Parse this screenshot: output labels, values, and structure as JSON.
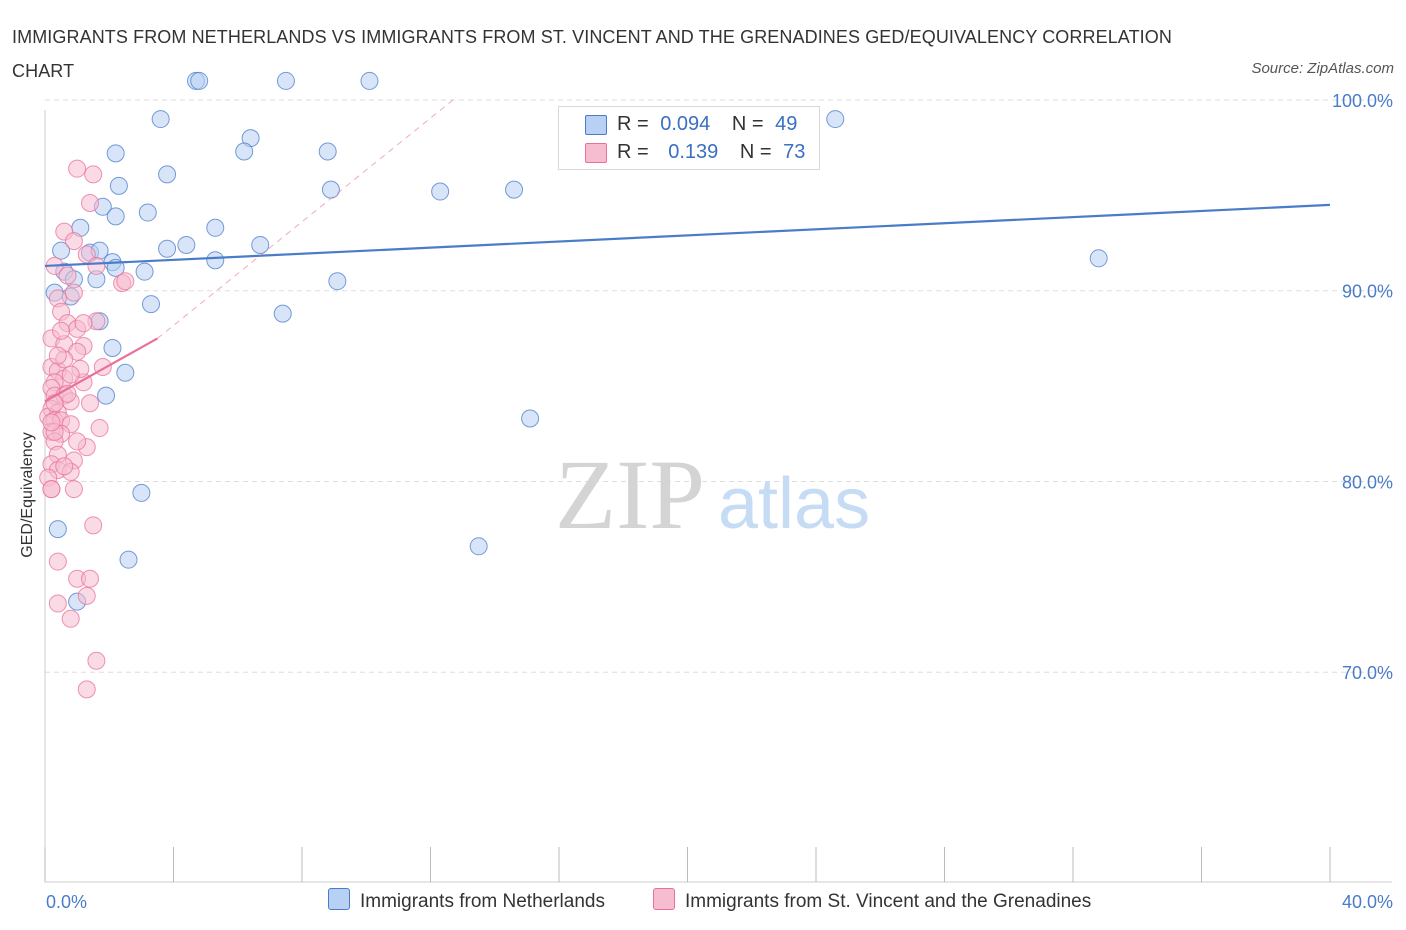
{
  "title": "IMMIGRANTS FROM NETHERLANDS VS IMMIGRANTS FROM ST. VINCENT AND THE GRENADINES GED/EQUIVALENCY CORRELATION CHART",
  "source": "Source: ZipAtlas.com",
  "watermark": {
    "zip": "ZIP",
    "atlas": "atlas"
  },
  "colors": {
    "blue": "#4a7cc9",
    "blue_fill": "#b8d0f3",
    "pink": "#e8709b",
    "pink_fill": "#f6bcd0",
    "grid": "#dddddd"
  },
  "legend_top": [
    {
      "r_label": "R =",
      "r_value": "0.094",
      "n_label": "N =",
      "n_value": "49"
    },
    {
      "r_label": "R =",
      "r_value": "0.139",
      "n_label": "N =",
      "n_value": "73"
    }
  ],
  "legend_bottom": [
    "Immigrants from Netherlands",
    "Immigrants from St. Vincent and the Grenadines"
  ],
  "chart_data": {
    "type": "scatter",
    "title": "IMMIGRANTS FROM NETHERLANDS VS IMMIGRANTS FROM ST. VINCENT AND THE GRENADINES GED/EQUIVALENCY CORRELATION CHART",
    "xlabel": "",
    "ylabel": "GED/Equivalency",
    "xlim": [
      0,
      40
    ],
    "ylim": [
      59,
      100
    ],
    "x_tick_labels": [
      "0.0%",
      "40.0%"
    ],
    "y_tick_labels": [
      "100.0%",
      "90.0%",
      "80.0%",
      "70.0%"
    ],
    "y_ticks": [
      100,
      90,
      80,
      70
    ],
    "grid": true,
    "series": [
      {
        "name": "Immigrants from Netherlands",
        "color": "#4a7cc9",
        "points": [
          [
            4.7,
            101
          ],
          [
            4.8,
            101
          ],
          [
            7.5,
            101
          ],
          [
            10.1,
            101
          ],
          [
            3.6,
            99
          ],
          [
            6.4,
            98
          ],
          [
            24.6,
            99
          ],
          [
            2.2,
            97.2
          ],
          [
            6.2,
            97.3
          ],
          [
            8.8,
            97.3
          ],
          [
            3.8,
            96.1
          ],
          [
            2.3,
            95.5
          ],
          [
            12.3,
            95.2
          ],
          [
            14.6,
            95.3
          ],
          [
            8.9,
            95.3
          ],
          [
            1.8,
            94.4
          ],
          [
            3.2,
            94.1
          ],
          [
            2.2,
            93.9
          ],
          [
            1.1,
            93.3
          ],
          [
            5.3,
            93.3
          ],
          [
            4.4,
            92.4
          ],
          [
            6.7,
            92.4
          ],
          [
            3.8,
            92.2
          ],
          [
            0.5,
            92.1
          ],
          [
            1.4,
            92.0
          ],
          [
            1.7,
            92.1
          ],
          [
            2.1,
            91.5
          ],
          [
            5.3,
            91.6
          ],
          [
            2.2,
            91.2
          ],
          [
            3.1,
            91.0
          ],
          [
            0.6,
            91.0
          ],
          [
            32.8,
            91.7
          ],
          [
            1.6,
            90.6
          ],
          [
            0.9,
            90.6
          ],
          [
            9.1,
            90.5
          ],
          [
            0.8,
            89.7
          ],
          [
            0.3,
            89.9
          ],
          [
            1.7,
            88.4
          ],
          [
            3.3,
            89.3
          ],
          [
            7.4,
            88.8
          ],
          [
            2.1,
            87.0
          ],
          [
            2.5,
            85.7
          ],
          [
            1.9,
            84.5
          ],
          [
            15.1,
            83.3
          ],
          [
            3.0,
            79.4
          ],
          [
            13.5,
            76.6
          ],
          [
            2.6,
            75.9
          ],
          [
            1.0,
            73.7
          ],
          [
            0.4,
            77.5
          ]
        ]
      },
      {
        "name": "Immigrants from St. Vincent and the Grenadines",
        "color": "#e8709b",
        "points": [
          [
            1.0,
            96.4
          ],
          [
            1.5,
            96.1
          ],
          [
            1.4,
            94.6
          ],
          [
            0.6,
            93.1
          ],
          [
            0.9,
            92.6
          ],
          [
            1.3,
            91.9
          ],
          [
            0.3,
            91.3
          ],
          [
            1.6,
            91.3
          ],
          [
            2.4,
            90.4
          ],
          [
            2.5,
            90.5
          ],
          [
            0.4,
            89.6
          ],
          [
            0.5,
            88.9
          ],
          [
            1.6,
            88.4
          ],
          [
            0.7,
            88.3
          ],
          [
            1.0,
            88.0
          ],
          [
            0.2,
            87.5
          ],
          [
            0.6,
            87.2
          ],
          [
            1.2,
            87.1
          ],
          [
            1.0,
            86.8
          ],
          [
            1.8,
            86.0
          ],
          [
            0.2,
            86.0
          ],
          [
            0.4,
            85.8
          ],
          [
            0.6,
            85.4
          ],
          [
            0.3,
            85.2
          ],
          [
            1.2,
            85.2
          ],
          [
            0.2,
            84.9
          ],
          [
            0.3,
            84.5
          ],
          [
            0.6,
            84.5
          ],
          [
            0.8,
            84.2
          ],
          [
            1.4,
            84.1
          ],
          [
            0.2,
            83.8
          ],
          [
            0.4,
            83.6
          ],
          [
            0.1,
            83.4
          ],
          [
            0.3,
            83.2
          ],
          [
            0.5,
            83.2
          ],
          [
            0.8,
            83.0
          ],
          [
            1.7,
            82.8
          ],
          [
            0.2,
            82.6
          ],
          [
            0.5,
            82.5
          ],
          [
            0.3,
            82.1
          ],
          [
            1.3,
            81.8
          ],
          [
            0.4,
            81.4
          ],
          [
            0.9,
            81.1
          ],
          [
            0.2,
            80.9
          ],
          [
            0.4,
            80.6
          ],
          [
            0.8,
            80.5
          ],
          [
            0.1,
            80.2
          ],
          [
            0.2,
            79.6
          ],
          [
            0.9,
            79.6
          ],
          [
            1.5,
            77.7
          ],
          [
            0.4,
            75.8
          ],
          [
            1.0,
            74.9
          ],
          [
            1.4,
            74.9
          ],
          [
            1.3,
            74.0
          ],
          [
            0.4,
            73.6
          ],
          [
            0.8,
            72.8
          ],
          [
            1.6,
            70.6
          ],
          [
            1.3,
            69.1
          ],
          [
            0.2,
            79.6
          ],
          [
            0.3,
            82.6
          ],
          [
            0.6,
            86.4
          ],
          [
            1.1,
            85.9
          ],
          [
            0.7,
            84.6
          ],
          [
            0.5,
            87.9
          ],
          [
            0.9,
            89.9
          ],
          [
            1.2,
            88.3
          ],
          [
            0.3,
            84.1
          ],
          [
            0.6,
            80.8
          ],
          [
            1.0,
            82.1
          ],
          [
            0.4,
            86.6
          ],
          [
            0.7,
            90.8
          ],
          [
            0.2,
            83.1
          ],
          [
            0.8,
            85.6
          ]
        ]
      }
    ],
    "trendlines": [
      {
        "series": "Immigrants from Netherlands",
        "x": [
          0,
          40
        ],
        "y": [
          91.3,
          94.5
        ],
        "style": "solid"
      },
      {
        "series": "Immigrants from St. Vincent and the Grenadines",
        "x": [
          0,
          3.5
        ],
        "y": [
          84.2,
          87.5
        ],
        "style": "solid"
      },
      {
        "series": "Immigrants from St. Vincent and the Grenadines",
        "x": [
          3.5,
          12.7
        ],
        "y": [
          87.5,
          100
        ],
        "style": "dashed"
      }
    ]
  }
}
